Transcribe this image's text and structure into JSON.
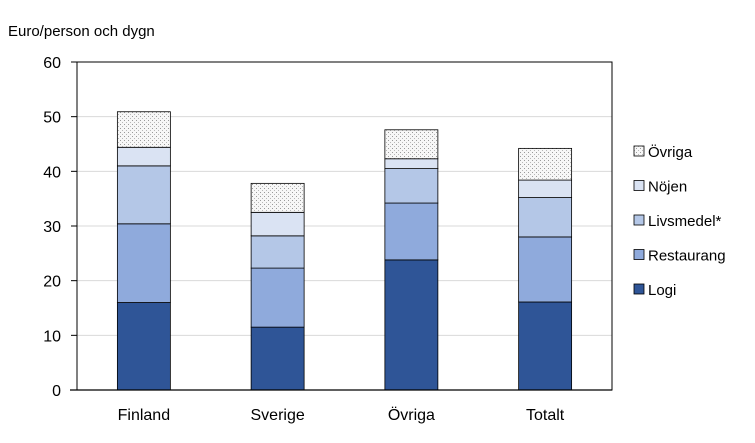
{
  "chart_data": {
    "type": "bar",
    "stacked": true,
    "title": "",
    "ylabel": "Euro/person och dygn",
    "xlabel": "",
    "categories": [
      "Finland",
      "Sverige",
      "Övriga",
      "Totalt"
    ],
    "ylim": [
      0,
      60
    ],
    "yticks": [
      0,
      10,
      20,
      30,
      40,
      50,
      60
    ],
    "grid": true,
    "legend_position": "right",
    "series": [
      {
        "name": "Logi",
        "values": [
          16.0,
          11.5,
          23.8,
          16.1
        ],
        "color": "#2f5597"
      },
      {
        "name": "Restaurang",
        "values": [
          14.4,
          10.8,
          10.4,
          11.9
        ],
        "color": "#8faadc"
      },
      {
        "name": "Livsmedel*",
        "values": [
          10.6,
          5.9,
          6.3,
          7.2
        ],
        "color": "#b4c7e7"
      },
      {
        "name": "Nöjen",
        "values": [
          3.4,
          4.3,
          1.8,
          3.2
        ],
        "color": "#dae3f3"
      },
      {
        "name": "Övriga",
        "values": [
          6.5,
          5.3,
          5.3,
          5.8
        ],
        "color": "#f2f2f2",
        "pattern": "dotted"
      }
    ]
  }
}
